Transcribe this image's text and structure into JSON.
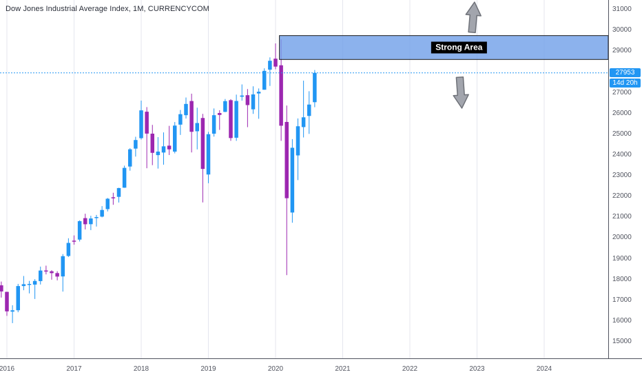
{
  "header": {
    "title": "Dow Jones Industrial Average Index, 1M, CURRENCYCOM"
  },
  "price_axis": {
    "ticks": [
      31000,
      30000,
      29000,
      27000,
      26000,
      25000,
      24000,
      23000,
      22000,
      21000,
      20000,
      19000,
      18000,
      17000,
      16000,
      15000
    ],
    "current_price_label": "27953",
    "countdown_label": "14d 20h",
    "label_color": "#2196f3"
  },
  "time_axis": {
    "labels": [
      "2016",
      "2017",
      "2018",
      "2019",
      "2020",
      "2021",
      "2022",
      "2023",
      "2024"
    ]
  },
  "annotations": {
    "strong_area_label": "Strong Area",
    "arrows": [
      {
        "name": "up-arrow",
        "direction": "up"
      },
      {
        "name": "down-arrow",
        "direction": "down"
      }
    ]
  },
  "chart_data": {
    "type": "candlestick",
    "title": "Dow Jones Industrial Average Index",
    "timeframe": "1M",
    "exchange": "CURRENCYCOM",
    "current_price": 27953,
    "countdown": "14d 20h",
    "ylim": [
      15000,
      31000
    ],
    "x_years": [
      2016,
      2017,
      2018,
      2019,
      2020,
      2021,
      2022,
      2023,
      2024
    ],
    "up_color": "#2196f3",
    "down_color": "#9c27b0",
    "grid": "vertical-only",
    "strong_area": {
      "label": "Strong Area",
      "from": "2020-02",
      "price_top": 29750,
      "price_bottom": 28600,
      "fill": "#6f9fe8",
      "border": "#1a1a1a"
    },
    "columns": [
      "time",
      "open",
      "high",
      "low",
      "close"
    ],
    "candles": [
      [
        "2015-11",
        17860,
        17980,
        17650,
        17720
      ],
      [
        "2015-12",
        17720,
        17900,
        17130,
        17425
      ],
      [
        "2016-01",
        17405,
        17410,
        16250,
        16466
      ],
      [
        "2016-02",
        16453,
        16760,
        15900,
        16517
      ],
      [
        "2016-03",
        16520,
        17790,
        16424,
        17685
      ],
      [
        "2016-04",
        17685,
        18170,
        17484,
        17774
      ],
      [
        "2016-05",
        17783,
        17935,
        17331,
        17787
      ],
      [
        "2016-06",
        17754,
        18016,
        17063,
        17930
      ],
      [
        "2016-07",
        17924,
        18622,
        17760,
        18432
      ],
      [
        "2016-08",
        18434,
        18668,
        18247,
        18401
      ],
      [
        "2016-09",
        18396,
        18450,
        17992,
        18308
      ],
      [
        "2016-10",
        18309,
        18400,
        17960,
        18142
      ],
      [
        "2016-11",
        18148,
        19225,
        17418,
        19124
      ],
      [
        "2016-12",
        19134,
        19988,
        19086,
        19763
      ],
      [
        "2017-01",
        19872,
        20126,
        19678,
        19864
      ],
      [
        "2017-02",
        19923,
        20851,
        19831,
        20812
      ],
      [
        "2017-03",
        20957,
        21169,
        20413,
        20663
      ],
      [
        "2017-04",
        20665,
        21071,
        20380,
        20941
      ],
      [
        "2017-05",
        20962,
        21112,
        20553,
        21009
      ],
      [
        "2017-06",
        21030,
        21535,
        20995,
        21350
      ],
      [
        "2017-07",
        21392,
        21929,
        21280,
        21891
      ],
      [
        "2017-08",
        21961,
        22179,
        21600,
        21948
      ],
      [
        "2017-09",
        21982,
        22420,
        21710,
        22405
      ],
      [
        "2017-10",
        22423,
        23485,
        22416,
        23377
      ],
      [
        "2017-11",
        23442,
        24327,
        23242,
        24272
      ],
      [
        "2017-12",
        24306,
        24876,
        23922,
        24719
      ],
      [
        "2018-01",
        24809,
        26617,
        24741,
        26149
      ],
      [
        "2018-02",
        26083,
        26306,
        23360,
        25029
      ],
      [
        "2018-03",
        25026,
        25449,
        23509,
        24103
      ],
      [
        "2018-04",
        23992,
        24859,
        23344,
        24163
      ],
      [
        "2018-05",
        24117,
        25086,
        23531,
        24416
      ],
      [
        "2018-06",
        24448,
        25402,
        23997,
        24271
      ],
      [
        "2018-07",
        24161,
        25587,
        24077,
        25415
      ],
      [
        "2018-08",
        25461,
        26167,
        24965,
        25965
      ],
      [
        "2018-09",
        25916,
        26769,
        25754,
        26458
      ],
      [
        "2018-10",
        26598,
        26952,
        24122,
        25116
      ],
      [
        "2018-11",
        25142,
        26277,
        24268,
        25538
      ],
      [
        "2018-12",
        25780,
        25980,
        21712,
        23327
      ],
      [
        "2019-01",
        23058,
        25110,
        22638,
        25000
      ],
      [
        "2019-02",
        25025,
        26241,
        24883,
        25916
      ],
      [
        "2019-03",
        26019,
        26155,
        25208,
        25929
      ],
      [
        "2019-04",
        26075,
        26696,
        26062,
        26593
      ],
      [
        "2019-05",
        26639,
        26689,
        24680,
        24815
      ],
      [
        "2019-06",
        24830,
        26907,
        24680,
        26600
      ],
      [
        "2019-07",
        26805,
        27399,
        26616,
        26864
      ],
      [
        "2019-08",
        26879,
        27175,
        25339,
        26403
      ],
      [
        "2019-09",
        26198,
        27306,
        25978,
        26917
      ],
      [
        "2019-10",
        26962,
        27204,
        25743,
        27046
      ],
      [
        "2019-11",
        27142,
        28174,
        27142,
        28051
      ],
      [
        "2019-12",
        28109,
        28701,
        27325,
        28538
      ],
      [
        "2020-01",
        28639,
        29373,
        28130,
        28256
      ],
      [
        "2020-02",
        28320,
        29568,
        24681,
        25409
      ],
      [
        "2020-03",
        25590,
        26383,
        18213,
        21917
      ],
      [
        "2020-04",
        21227,
        24764,
        20735,
        24346
      ],
      [
        "2020-05",
        23978,
        25758,
        22789,
        25383
      ],
      [
        "2020-06",
        25343,
        27580,
        24843,
        25813
      ],
      [
        "2020-07",
        25879,
        27071,
        25015,
        26428
      ],
      [
        "2020-08",
        26542,
        28092,
        26300,
        27953
      ]
    ]
  }
}
